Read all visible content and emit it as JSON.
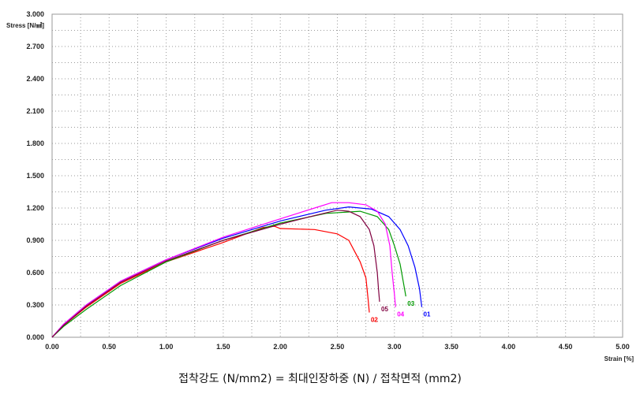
{
  "caption": "접착강도 (N/mm2) = 최대인장하중 (N) / 접착면적 (mm2)",
  "chart_data": {
    "type": "line",
    "xlabel": "Strain [%]",
    "ylabel": "Stress [N/㎟]",
    "xlim": [
      0,
      5
    ],
    "ylim": [
      0,
      3
    ],
    "x_ticks": [
      "0.00",
      "0.50",
      "1.00",
      "1.50",
      "2.00",
      "2.50",
      "3.00",
      "3.50",
      "4.00",
      "4.50",
      "5.00"
    ],
    "y_ticks": [
      "0.000",
      "0.300",
      "0.600",
      "0.900",
      "1.200",
      "1.500",
      "1.800",
      "2.100",
      "2.400",
      "2.700",
      "3.000"
    ],
    "grid": true,
    "series": [
      {
        "name": "01",
        "color": "#0000ff",
        "points": [
          [
            0,
            0
          ],
          [
            0.1,
            0.12
          ],
          [
            0.3,
            0.3
          ],
          [
            0.6,
            0.52
          ],
          [
            1.0,
            0.72
          ],
          [
            1.5,
            0.92
          ],
          [
            2.0,
            1.08
          ],
          [
            2.4,
            1.18
          ],
          [
            2.6,
            1.21
          ],
          [
            2.8,
            1.19
          ],
          [
            2.95,
            1.12
          ],
          [
            3.05,
            1.0
          ],
          [
            3.12,
            0.85
          ],
          [
            3.18,
            0.65
          ],
          [
            3.22,
            0.45
          ],
          [
            3.24,
            0.28
          ]
        ]
      },
      {
        "name": "02",
        "color": "#ff0000",
        "points": [
          [
            0,
            0
          ],
          [
            0.1,
            0.11
          ],
          [
            0.3,
            0.28
          ],
          [
            0.6,
            0.5
          ],
          [
            1.0,
            0.7
          ],
          [
            1.5,
            0.88
          ],
          [
            1.85,
            1.02
          ],
          [
            1.95,
            1.03
          ],
          [
            2.0,
            1.01
          ],
          [
            2.3,
            1.0
          ],
          [
            2.5,
            0.96
          ],
          [
            2.6,
            0.9
          ],
          [
            2.65,
            0.8
          ],
          [
            2.7,
            0.7
          ],
          [
            2.75,
            0.55
          ],
          [
            2.77,
            0.35
          ],
          [
            2.78,
            0.23
          ]
        ]
      },
      {
        "name": "03",
        "color": "#009900",
        "points": [
          [
            0,
            0
          ],
          [
            0.1,
            0.1
          ],
          [
            0.3,
            0.26
          ],
          [
            0.6,
            0.48
          ],
          [
            1.0,
            0.7
          ],
          [
            1.5,
            0.9
          ],
          [
            2.0,
            1.06
          ],
          [
            2.4,
            1.15
          ],
          [
            2.7,
            1.17
          ],
          [
            2.85,
            1.12
          ],
          [
            2.95,
            1.0
          ],
          [
            3.0,
            0.85
          ],
          [
            3.05,
            0.68
          ],
          [
            3.08,
            0.5
          ],
          [
            3.1,
            0.38
          ]
        ]
      },
      {
        "name": "04",
        "color": "#ff00ff",
        "points": [
          [
            0,
            0
          ],
          [
            0.1,
            0.12
          ],
          [
            0.3,
            0.3
          ],
          [
            0.6,
            0.52
          ],
          [
            1.0,
            0.72
          ],
          [
            1.5,
            0.93
          ],
          [
            2.0,
            1.1
          ],
          [
            2.3,
            1.2
          ],
          [
            2.45,
            1.25
          ],
          [
            2.6,
            1.25
          ],
          [
            2.75,
            1.23
          ],
          [
            2.85,
            1.17
          ],
          [
            2.92,
            1.05
          ],
          [
            2.96,
            0.85
          ],
          [
            2.98,
            0.6
          ],
          [
            3.0,
            0.4
          ],
          [
            3.01,
            0.28
          ]
        ]
      },
      {
        "name": "05",
        "color": "#800040",
        "points": [
          [
            0,
            0
          ],
          [
            0.1,
            0.11
          ],
          [
            0.3,
            0.29
          ],
          [
            0.6,
            0.51
          ],
          [
            1.0,
            0.71
          ],
          [
            1.5,
            0.9
          ],
          [
            2.0,
            1.05
          ],
          [
            2.3,
            1.13
          ],
          [
            2.5,
            1.18
          ],
          [
            2.6,
            1.17
          ],
          [
            2.7,
            1.12
          ],
          [
            2.78,
            1.0
          ],
          [
            2.82,
            0.85
          ],
          [
            2.85,
            0.6
          ],
          [
            2.86,
            0.45
          ],
          [
            2.87,
            0.33
          ]
        ]
      }
    ]
  }
}
